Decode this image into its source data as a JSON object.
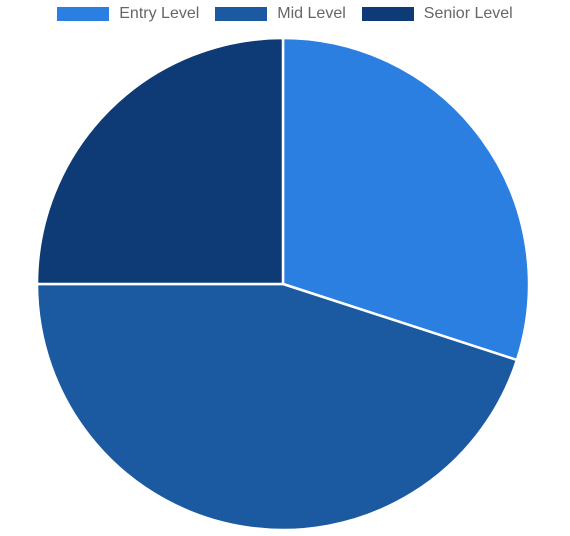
{
  "chart_data": {
    "type": "pie",
    "categories": [
      "Entry Level",
      "Mid Level",
      "Senior Level"
    ],
    "values": [
      30,
      45,
      25
    ],
    "colors": [
      "#2b7fe0",
      "#1b5aa0",
      "#0e3a75"
    ],
    "legend": "top",
    "start_angle": "12 o'clock, clockwise"
  }
}
